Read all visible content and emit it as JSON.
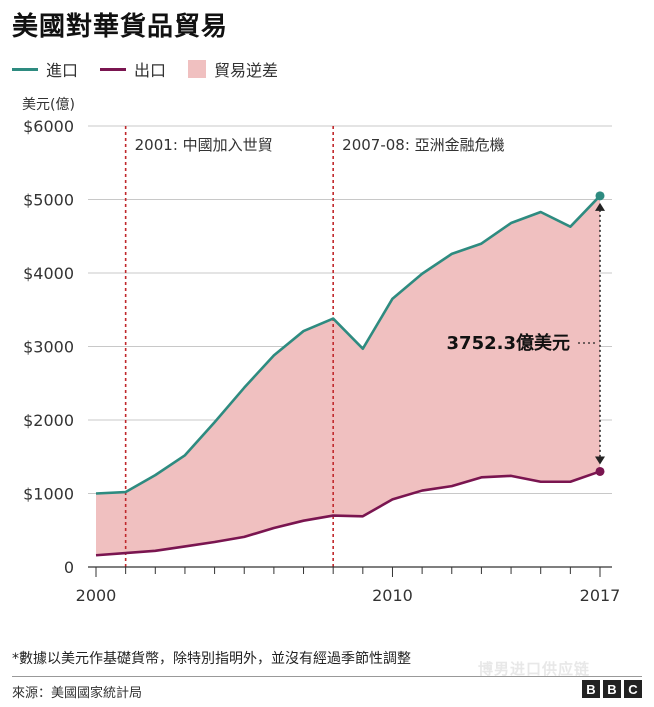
{
  "title": "美國對華貨品貿易",
  "legend": {
    "imports_label": "進口",
    "exports_label": "出口",
    "deficit_label": "貿易逆差"
  },
  "colors": {
    "imports": "#2e8b80",
    "exports": "#7a1550",
    "deficit_fill": "#f0c0c0",
    "event_line": "#c0282c",
    "arrow": "#222222"
  },
  "unit_label": "美元(億)",
  "footnote": "*數據以美元作基礎貨幣，除特別指明外，並沒有經過季節性調整",
  "source": "來源：美國國家統計局",
  "watermark": "博男进口供应链",
  "brand": [
    "B",
    "B",
    "C"
  ],
  "chart_data": {
    "type": "area",
    "title": "美國對華貨品貿易",
    "ylabel": "美元(億)",
    "xlabel": "",
    "x": [
      2000,
      2001,
      2002,
      2003,
      2004,
      2005,
      2006,
      2007,
      2008,
      2009,
      2010,
      2011,
      2012,
      2013,
      2014,
      2015,
      2016,
      2017
    ],
    "xlim": [
      2000,
      2017
    ],
    "ylim": [
      0,
      6000
    ],
    "x_ticks": [
      2000,
      2010,
      2017
    ],
    "y_ticks": [
      0,
      1000,
      2000,
      3000,
      4000,
      5000,
      6000
    ],
    "y_tick_labels": [
      "0",
      "$1000",
      "$2000",
      "$3000",
      "$4000",
      "$5000",
      "$6000"
    ],
    "series": [
      {
        "name": "進口",
        "values": [
          1000,
          1020,
          1250,
          1520,
          1970,
          2440,
          2880,
          3210,
          3380,
          2970,
          3650,
          3990,
          4260,
          4400,
          4680,
          4830,
          4630,
          5050
        ]
      },
      {
        "name": "出口",
        "values": [
          160,
          190,
          220,
          280,
          340,
          410,
          530,
          630,
          700,
          690,
          920,
          1040,
          1100,
          1220,
          1240,
          1160,
          1160,
          1300
        ]
      }
    ],
    "fill_between": {
      "label": "貿易逆差",
      "upper": "進口",
      "lower": "出口"
    },
    "events": [
      {
        "x": 2001,
        "label": "2001: 中國加入世貿"
      },
      {
        "x": 2008,
        "label": "2007-08: 亞洲金融危機"
      }
    ],
    "annotation": {
      "x": 2017,
      "text": "3752.3億美元"
    },
    "grid": true,
    "legend_position": "top-left"
  }
}
